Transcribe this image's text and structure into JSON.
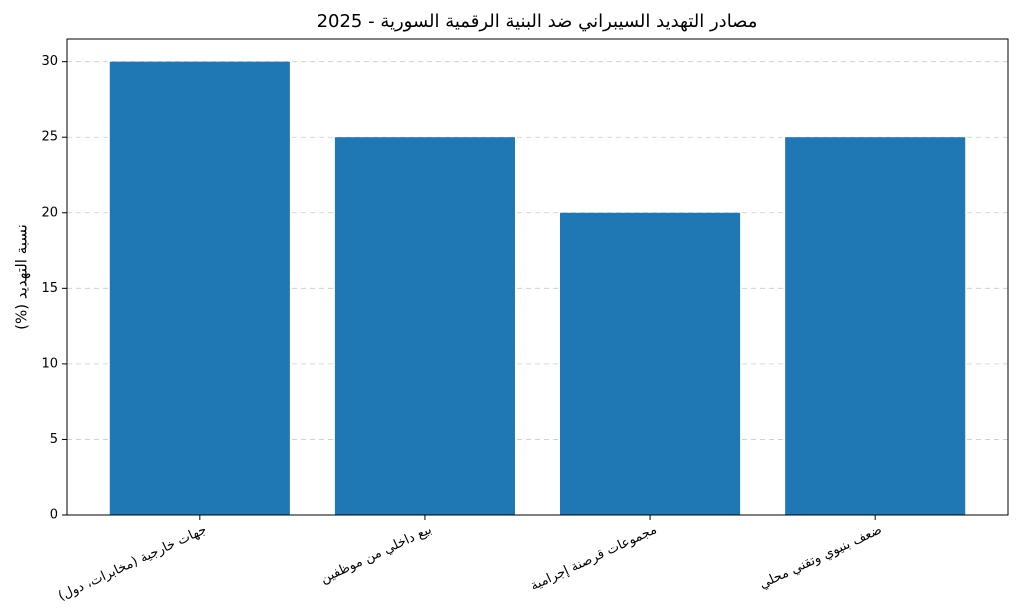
{
  "chart_data": {
    "type": "bar",
    "title": "مصادر التهديد السيبراني ضد البنية الرقمية السورية - 2025",
    "y_label": "نسبة التهديد (%)",
    "categories": [
      "جهات خارجية (مخابرات، دول)",
      "بيع داخلي من موظفين",
      "مجموعات قرصنة إجرامية",
      "ضعف بنيوي وتقني محلي"
    ],
    "values": [
      30,
      25,
      20,
      25
    ],
    "color": "#1f77b4",
    "ylim": [
      0,
      31.5
    ],
    "yticks": [
      0,
      5,
      10,
      15,
      20,
      25,
      30
    ],
    "grid": true
  }
}
